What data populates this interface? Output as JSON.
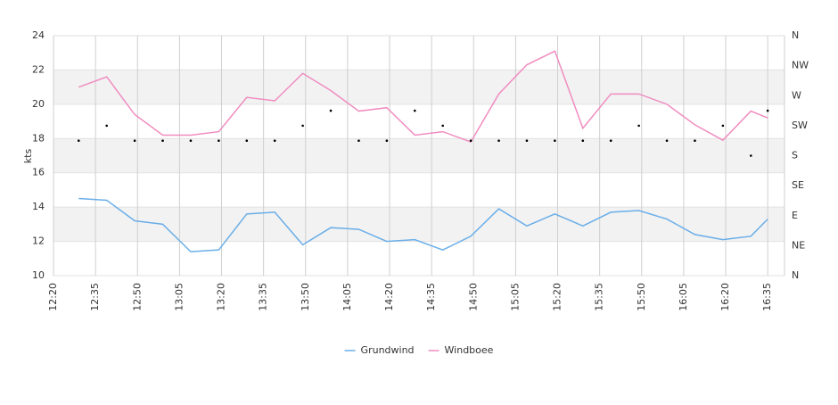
{
  "chart_data": {
    "type": "line",
    "y_label": "kts",
    "x": [
      "12:29",
      "12:39",
      "12:49",
      "12:59",
      "13:09",
      "13:19",
      "13:29",
      "13:39",
      "13:49",
      "13:59",
      "14:09",
      "14:19",
      "14:29",
      "14:39",
      "14:49",
      "14:59",
      "15:09",
      "15:19",
      "15:29",
      "15:39",
      "15:49",
      "15:59",
      "16:09",
      "16:19",
      "16:29",
      "16:35"
    ],
    "xlim": [
      "12:20",
      "16:41"
    ],
    "xticks": [
      "12:20",
      "12:35",
      "12:50",
      "13:05",
      "13:20",
      "13:35",
      "13:50",
      "14:05",
      "14:20",
      "14:35",
      "14:50",
      "15:05",
      "15:20",
      "15:35",
      "15:50",
      "16:05",
      "16:20",
      "16:35"
    ],
    "ylim": [
      10,
      24
    ],
    "yticks": [
      10,
      12,
      14,
      16,
      18,
      20,
      22,
      24
    ],
    "y2lim": [
      0,
      360
    ],
    "y2ticks": [
      {
        "value": 0,
        "label": "N"
      },
      {
        "value": 45,
        "label": "NE"
      },
      {
        "value": 90,
        "label": "E"
      },
      {
        "value": 135,
        "label": "SE"
      },
      {
        "value": 180,
        "label": "S"
      },
      {
        "value": 225,
        "label": "SW"
      },
      {
        "value": 270,
        "label": "W"
      },
      {
        "value": 315,
        "label": "NW"
      },
      {
        "value": 360,
        "label": "N"
      }
    ],
    "grid": true,
    "legend": "bottom",
    "series": [
      {
        "name": "Grundwind",
        "color": "#6aaee8",
        "values": [
          14.5,
          14.4,
          13.2,
          13.0,
          11.4,
          11.5,
          13.6,
          13.7,
          11.8,
          12.8,
          12.7,
          12.0,
          12.1,
          11.5,
          12.3,
          13.9,
          12.9,
          13.6,
          12.9,
          13.7,
          13.8,
          13.3,
          12.4,
          12.1,
          12.3,
          13.3
        ]
      },
      {
        "name": "Windboee",
        "color": "#f08cc0",
        "values": [
          21.0,
          21.6,
          19.4,
          18.2,
          18.2,
          18.4,
          20.4,
          20.2,
          21.8,
          20.8,
          19.6,
          19.8,
          18.2,
          18.4,
          17.8,
          20.6,
          22.3,
          23.1,
          18.6,
          20.6,
          20.6,
          20.0,
          18.8,
          17.9,
          19.6,
          19.2
        ]
      },
      {
        "color": "#000000",
        "axis": "y2",
        "values": [
          202.5,
          225,
          202.5,
          202.5,
          202.5,
          202.5,
          202.5,
          202.5,
          225,
          247.5,
          202.5,
          202.5,
          247.5,
          225,
          202.5,
          202.5,
          202.5,
          202.5,
          202.5,
          202.5,
          225,
          202.5,
          202.5,
          225,
          180,
          247.5
        ]
      }
    ]
  }
}
